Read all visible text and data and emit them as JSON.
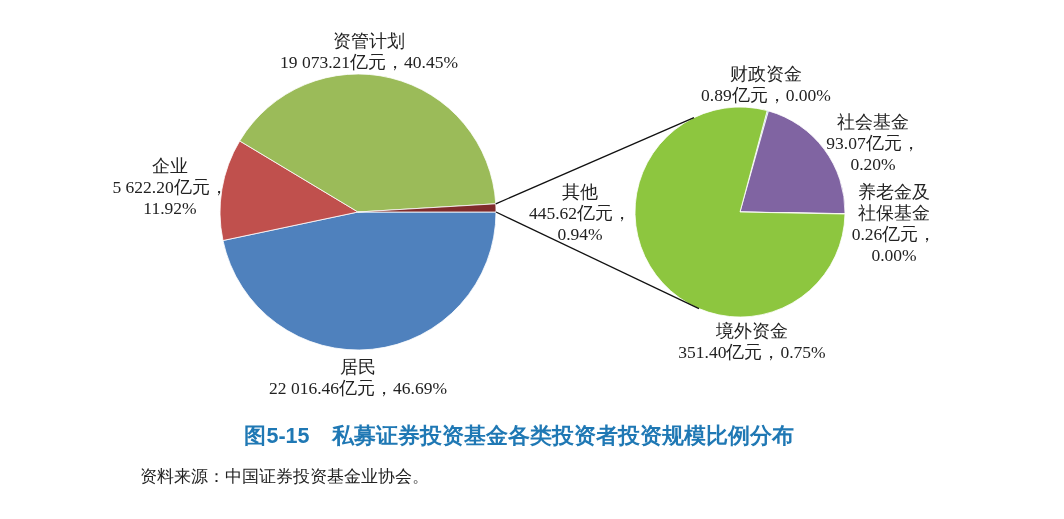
{
  "chart_data": [
    {
      "type": "pie",
      "title": "图5-15　私募证券投资基金各类投资者投资规模比例分布",
      "categories": [
        "居民",
        "企业",
        "资管计划",
        "其他"
      ],
      "values": [
        22016.46,
        5622.2,
        19073.21,
        445.62
      ],
      "colors": [
        "#4f81bd",
        "#c0504d",
        "#9bbb59",
        "#7f2b2b"
      ],
      "value_labels": [
        "22 016.46亿元，46.69%",
        "5 622.20亿元，11.92%",
        "19 073.21亿元，40.45%",
        "445.62亿元，0.94%"
      ],
      "annotations": [
        "资料来源：中国证券投资基金业协会。"
      ]
    },
    {
      "type": "pie",
      "categories": [
        "财政资金",
        "社会基金",
        "养老金及社保基金",
        "境外资金"
      ],
      "values": [
        0.89,
        93.07,
        0.26,
        351.4
      ],
      "colors": [
        "#4bacc6",
        "#8064a2",
        "#f79646",
        "#8dc63f"
      ],
      "value_labels": [
        "0.89亿元，0.00%",
        "93.07亿元，0.20%",
        "0.26亿元，0.00%",
        "351.40亿元，0.75%"
      ]
    }
  ]
}
